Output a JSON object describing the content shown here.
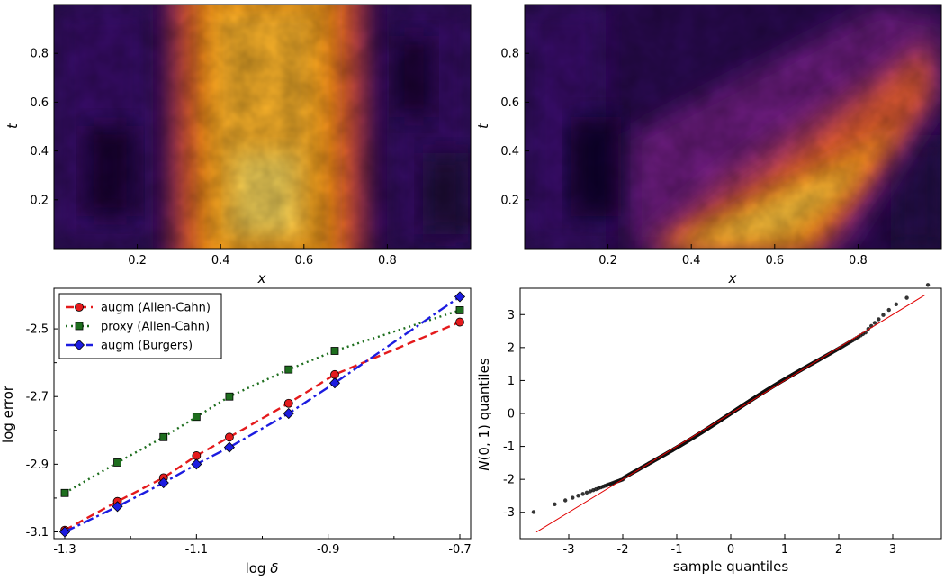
{
  "colors": {
    "augm_allen_cahn": "#e41a1c",
    "proxy_allen_cahn": "#1e6e1e",
    "augm_burgers": "#1c1ce0",
    "reference_line": "#e00000",
    "qq_points": "#111111"
  },
  "chart_data": [
    {
      "type": "heatmap",
      "panel": "top-left",
      "colormap": "inferno",
      "xlabel": "x",
      "ylabel": "t",
      "xlim": [
        0,
        1
      ],
      "ylim": [
        0,
        1
      ],
      "xticks": [
        "0.2",
        "0.4",
        "0.6",
        "0.8"
      ],
      "yticks": [
        "0.2",
        "0.4",
        "0.6",
        "0.8"
      ],
      "description_values": {
        "band_left": 0.3,
        "band_right": 0.7
      }
    },
    {
      "type": "heatmap",
      "panel": "top-right",
      "colormap": "inferno",
      "xlabel": "x",
      "ylabel": "t",
      "xlim": [
        0,
        1
      ],
      "ylim": [
        0,
        1
      ],
      "xticks": [
        "0.2",
        "0.4",
        "0.6",
        "0.8"
      ],
      "yticks": [
        "0.2",
        "0.4",
        "0.6",
        "0.8"
      ],
      "description_values": {
        "band_left_t0": 0.3,
        "band_right_t0": 0.7,
        "band_right_t1": 1.0
      }
    },
    {
      "type": "line",
      "panel": "bottom-left",
      "xlabel": "log",
      "xlabel_symbol": "δ",
      "ylabel": "log error",
      "xlim": [
        -1.3,
        -0.7
      ],
      "ylim": [
        -3.12,
        -2.38
      ],
      "xticks": [
        "-1.3",
        "-1.1",
        "-0.9",
        "-0.7"
      ],
      "yticks": [
        "-2.5",
        "-2.7",
        "-2.9",
        "-3.1"
      ],
      "legend_position": "top-left",
      "series": [
        {
          "name": "augm (Allen-Cahn)",
          "marker": "circle",
          "style": "dashed",
          "x": [
            -1.3,
            -1.22,
            -1.15,
            -1.1,
            -1.05,
            -0.96,
            -0.89,
            -0.7
          ],
          "y": [
            -3.095,
            -3.01,
            -2.94,
            -2.875,
            -2.82,
            -2.72,
            -2.635,
            -2.48
          ]
        },
        {
          "name": "proxy (Allen-Cahn)",
          "marker": "square",
          "style": "dotted",
          "x": [
            -1.3,
            -1.22,
            -1.15,
            -1.1,
            -1.05,
            -0.96,
            -0.89,
            -0.7
          ],
          "y": [
            -2.985,
            -2.895,
            -2.82,
            -2.76,
            -2.7,
            -2.62,
            -2.565,
            -2.445
          ]
        },
        {
          "name": "augm (Burgers)",
          "marker": "diamond",
          "style": "dashdot",
          "x": [
            -1.3,
            -1.22,
            -1.15,
            -1.1,
            -1.05,
            -0.96,
            -0.89,
            -0.7
          ],
          "y": [
            -3.1,
            -3.025,
            -2.955,
            -2.9,
            -2.85,
            -2.75,
            -2.66,
            -2.405
          ]
        }
      ]
    },
    {
      "type": "scatter",
      "panel": "bottom-right",
      "xlabel": "sample quantiles",
      "ylabel_italic": "N",
      "ylabel": "(0, 1) quantiles",
      "xlim": [
        -3.9,
        3.9
      ],
      "ylim": [
        -3.8,
        3.8
      ],
      "xticks": [
        "-3",
        "-2",
        "-1",
        "0",
        "1",
        "2",
        "3"
      ],
      "yticks": [
        "3",
        "2",
        "1",
        "0",
        "-1",
        "-2",
        "-3"
      ],
      "reference_line": {
        "x": [
          -3.6,
          3.6
        ],
        "y": [
          -3.6,
          3.6
        ]
      },
      "points_summary": {
        "count": 600,
        "left_tail_end": [
          -3.6,
          -2.95
        ],
        "right_tail_end": [
          3.6,
          3.55
        ]
      }
    }
  ]
}
